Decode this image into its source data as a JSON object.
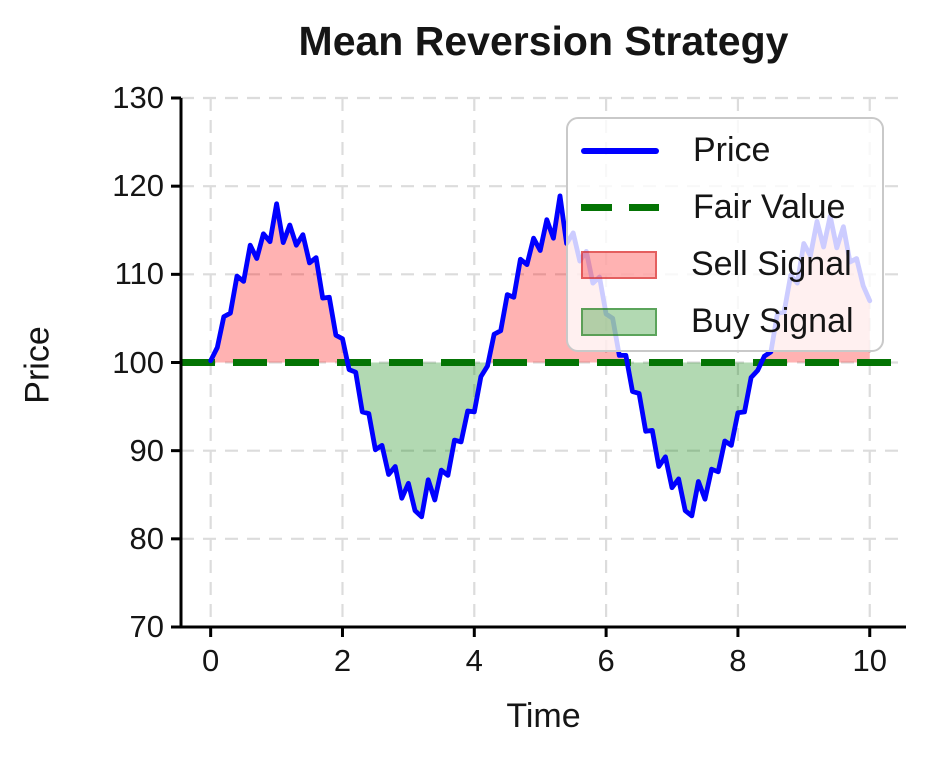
{
  "chart_data": {
    "type": "line",
    "title": "Mean Reversion Strategy",
    "xlabel": "Time",
    "ylabel": "Price",
    "xlim": [
      -0.45,
      10.55
    ],
    "ylim": [
      70,
      130
    ],
    "xticks": [
      0,
      2,
      4,
      6,
      8,
      10
    ],
    "yticks": [
      70,
      80,
      90,
      100,
      110,
      120,
      130
    ],
    "grid": true,
    "fair_value": 100,
    "colors": {
      "price": "#0000ff",
      "fair_value": "#047404",
      "sell_fill": "rgba(255,0,0,0.30)",
      "buy_fill": "rgba(0,128,0,0.30)",
      "sell_edge": "rgba(210,40,40,0.6)",
      "buy_edge": "rgba(20,120,20,0.55)",
      "grid": "#dcdcdc",
      "axis": "#000000"
    },
    "legend": {
      "position": "upper right",
      "items": [
        {
          "label": "Price",
          "type": "line"
        },
        {
          "label": "Fair Value",
          "type": "dashed-line"
        },
        {
          "label": "Sell Signal",
          "type": "patch"
        },
        {
          "label": "Buy Signal",
          "type": "patch"
        }
      ]
    },
    "series": [
      {
        "name": "Price",
        "x_start": 0,
        "x_step": 0.1,
        "y": [
          100.2,
          101.7,
          105.2,
          105.6,
          109.8,
          109.2,
          113.3,
          111.8,
          114.6,
          113.7,
          118.0,
          113.6,
          115.6,
          113.3,
          114.5,
          111.3,
          111.9,
          107.3,
          107.4,
          103.1,
          102.7,
          99.2,
          98.9,
          94.4,
          94.2,
          90.1,
          90.6,
          87.3,
          88.2,
          84.6,
          86.3,
          83.2,
          82.5,
          86.7,
          84.4,
          87.8,
          87.2,
          91.2,
          91.0,
          94.5,
          94.4,
          98.4,
          99.6,
          103.2,
          103.6,
          107.7,
          107.4,
          111.7,
          111.1,
          114.1,
          112.7,
          116.2,
          114.1,
          118.9,
          113.5,
          114.7,
          111.5,
          112.6,
          109.0,
          109.7,
          105.5,
          105.0,
          100.8,
          100.8,
          96.7,
          96.5,
          92.2,
          92.3,
          88.2,
          89.3,
          85.8,
          86.8,
          83.2,
          82.6,
          86.5,
          84.5,
          87.9,
          87.6,
          91.1,
          90.6,
          94.3,
          94.4,
          98.3,
          99.1,
          100.7,
          101.2,
          105.6,
          105.7,
          109.9,
          109.0,
          113.5,
          112.1,
          116.0,
          113.1,
          116.6,
          113.0,
          115.4,
          111.4,
          111.8,
          108.7,
          107.0
        ]
      },
      {
        "name": "Fair Value",
        "value": 100
      }
    ]
  }
}
